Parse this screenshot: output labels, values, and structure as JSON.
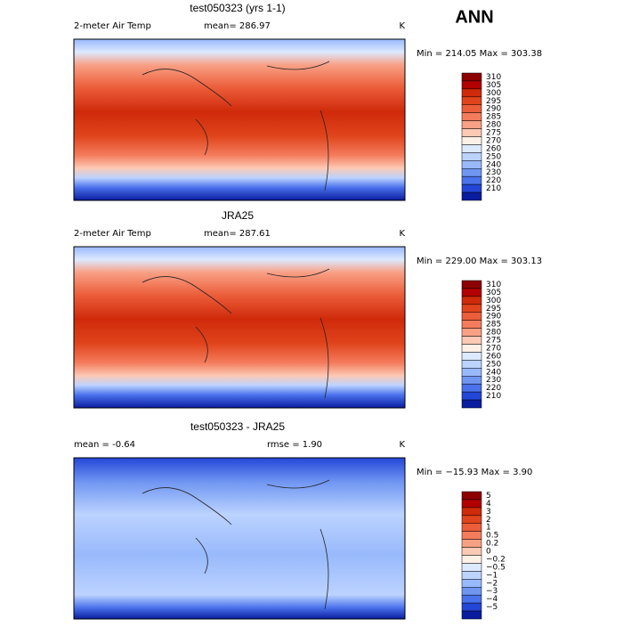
{
  "title": "ANN",
  "panels": [
    {
      "title": "test050323 (yrs 1-1)",
      "left": "2-meter Air Temp",
      "middle": "mean= 286.97",
      "units": "K",
      "range": "Min = 214.05 Max = 303.38",
      "levels": [
        "310",
        "305",
        "300",
        "295",
        "290",
        "285",
        "280",
        "275",
        "270",
        "260",
        "250",
        "240",
        "230",
        "220",
        "210"
      ],
      "colors": [
        "#8c0000",
        "#b30000",
        "#cf2a0a",
        "#e0441c",
        "#ec5d3a",
        "#f47c5c",
        "#f8a085",
        "#fcc9b5",
        "#fff0e6",
        "#dde9ff",
        "#bcd3ff",
        "#98b9fb",
        "#7096f2",
        "#4a72ec",
        "#2446d8",
        "#0a1ca0"
      ]
    },
    {
      "title": "JRA25",
      "left": "2-meter Air Temp",
      "middle": "mean= 287.61",
      "units": "K",
      "range": "Min = 229.00 Max = 303.13",
      "levels": [
        "310",
        "305",
        "300",
        "295",
        "290",
        "285",
        "280",
        "275",
        "270",
        "260",
        "250",
        "240",
        "230",
        "220",
        "210"
      ],
      "colors": [
        "#8c0000",
        "#b30000",
        "#cf2a0a",
        "#e0441c",
        "#ec5d3a",
        "#f47c5c",
        "#f8a085",
        "#fcc9b5",
        "#fff0e6",
        "#dde9ff",
        "#bcd3ff",
        "#98b9fb",
        "#7096f2",
        "#4a72ec",
        "#2446d8",
        "#0a1ca0"
      ]
    },
    {
      "title": "test050323 - JRA25",
      "left": "mean =  -0.64",
      "middle": "rmse =  1.90",
      "units": "K",
      "range": "Min = −15.93 Max =    3.90",
      "levels": [
        "5",
        "4",
        "3",
        "2",
        "1",
        "0.5",
        "0.2",
        "0",
        "−0.2",
        "−0.5",
        "−1",
        "−2",
        "−3",
        "−4",
        "−5"
      ],
      "colors": [
        "#8c0000",
        "#b30000",
        "#cf2a0a",
        "#e0441c",
        "#ec5d3a",
        "#f47c5c",
        "#f8a085",
        "#fcc9b5",
        "#fff0e6",
        "#dde9ff",
        "#bcd3ff",
        "#98b9fb",
        "#7096f2",
        "#4a72ec",
        "#2446d8",
        "#0a1ca0"
      ]
    }
  ]
}
